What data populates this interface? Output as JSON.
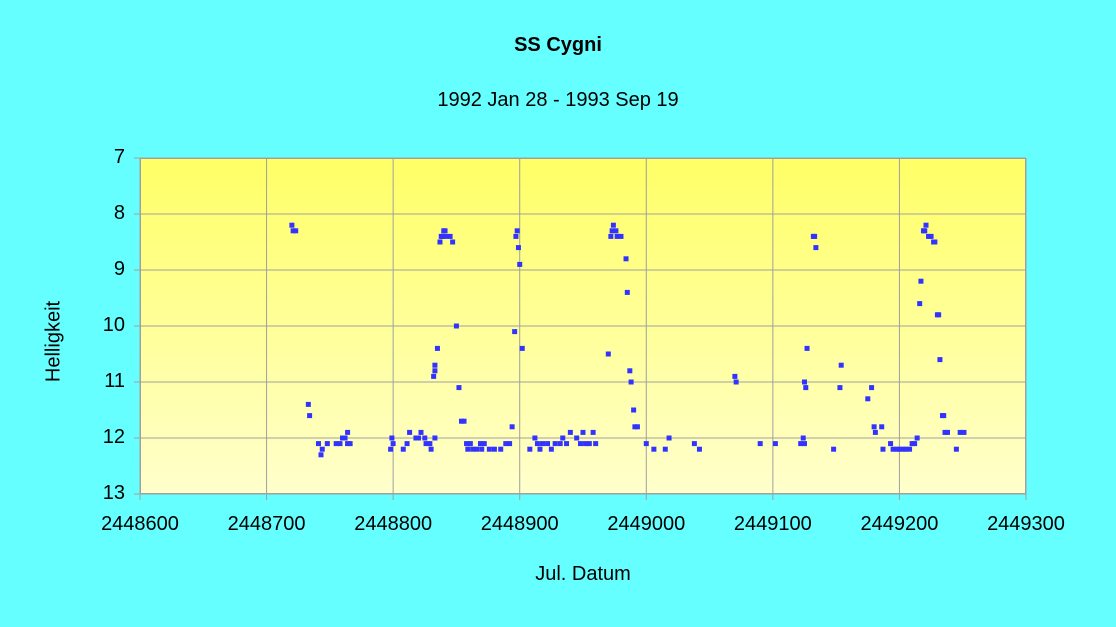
{
  "chart_data": {
    "type": "scatter",
    "title": "SS Cygni",
    "subtitle": "1992 Jan 28 - 1993 Sep 19",
    "xlabel": "Jul. Datum",
    "ylabel": "Helligkeit",
    "xlim": [
      2448600,
      2449300
    ],
    "ylim": [
      7,
      13
    ],
    "y_inverted": true,
    "xticks": [
      "2448600",
      "2448700",
      "2448800",
      "2448900",
      "2449000",
      "2449100",
      "2449200",
      "2449300"
    ],
    "yticks": [
      "7",
      "8",
      "9",
      "10",
      "11",
      "12",
      "13"
    ],
    "grid": true,
    "legend": null,
    "colors": {
      "background": "#66ffff",
      "plot_top": "#ffff66",
      "plot_bottom": "#ffffcc",
      "marker": "#3333ff",
      "grid": "#a0a0a0"
    },
    "series": [
      {
        "name": "SS Cyg",
        "points": [
          [
            2448720,
            8.2
          ],
          [
            2448721,
            8.3
          ],
          [
            2448723,
            8.3
          ],
          [
            2448733,
            11.4
          ],
          [
            2448734,
            11.6
          ],
          [
            2448741,
            12.1
          ],
          [
            2448743,
            12.3
          ],
          [
            2448744,
            12.2
          ],
          [
            2448748,
            12.1
          ],
          [
            2448755,
            12.1
          ],
          [
            2448758,
            12.1
          ],
          [
            2448760,
            12.0
          ],
          [
            2448762,
            12.0
          ],
          [
            2448764,
            11.9
          ],
          [
            2448764,
            12.1
          ],
          [
            2448766,
            12.1
          ],
          [
            2448798,
            12.2
          ],
          [
            2448799,
            12.0
          ],
          [
            2448800,
            12.1
          ],
          [
            2448808,
            12.2
          ],
          [
            2448811,
            12.1
          ],
          [
            2448813,
            11.9
          ],
          [
            2448818,
            12.0
          ],
          [
            2448820,
            12.0
          ],
          [
            2448822,
            11.9
          ],
          [
            2448825,
            12.0
          ],
          [
            2448826,
            12.1
          ],
          [
            2448829,
            12.1
          ],
          [
            2448830,
            12.2
          ],
          [
            2448833,
            12.0
          ],
          [
            2448832,
            10.9
          ],
          [
            2448833,
            10.8
          ],
          [
            2448833,
            10.7
          ],
          [
            2448835,
            10.4
          ],
          [
            2448837,
            8.5
          ],
          [
            2448838,
            8.4
          ],
          [
            2448839,
            8.4
          ],
          [
            2448840,
            8.3
          ],
          [
            2448841,
            8.3
          ],
          [
            2448842,
            8.4
          ],
          [
            2448845,
            8.4
          ],
          [
            2448847,
            8.5
          ],
          [
            2448850,
            10.0
          ],
          [
            2448852,
            11.1
          ],
          [
            2448854,
            11.7
          ],
          [
            2448856,
            11.7
          ],
          [
            2448858,
            12.1
          ],
          [
            2448859,
            12.2
          ],
          [
            2448861,
            12.1
          ],
          [
            2448863,
            12.2
          ],
          [
            2448866,
            12.2
          ],
          [
            2448869,
            12.1
          ],
          [
            2448870,
            12.2
          ],
          [
            2448872,
            12.1
          ],
          [
            2448876,
            12.2
          ],
          [
            2448880,
            12.2
          ],
          [
            2448885,
            12.2
          ],
          [
            2448889,
            12.1
          ],
          [
            2448892,
            12.1
          ],
          [
            2448894,
            11.8
          ],
          [
            2448896,
            10.1
          ],
          [
            2448897,
            8.4
          ],
          [
            2448898,
            8.3
          ],
          [
            2448899,
            8.6
          ],
          [
            2448900,
            8.9
          ],
          [
            2448902,
            10.4
          ],
          [
            2448908,
            12.2
          ],
          [
            2448912,
            12.0
          ],
          [
            2448914,
            12.1
          ],
          [
            2448916,
            12.2
          ],
          [
            2448918,
            12.1
          ],
          [
            2448922,
            12.1
          ],
          [
            2448925,
            12.2
          ],
          [
            2448928,
            12.1
          ],
          [
            2448932,
            12.1
          ],
          [
            2448934,
            12.0
          ],
          [
            2448937,
            12.1
          ],
          [
            2448940,
            11.9
          ],
          [
            2448945,
            12.0
          ],
          [
            2448948,
            12.1
          ],
          [
            2448950,
            11.9
          ],
          [
            2448952,
            12.1
          ],
          [
            2448955,
            12.1
          ],
          [
            2448958,
            11.9
          ],
          [
            2448960,
            12.1
          ],
          [
            2448970,
            10.5
          ],
          [
            2448972,
            8.4
          ],
          [
            2448973,
            8.3
          ],
          [
            2448974,
            8.2
          ],
          [
            2448976,
            8.3
          ],
          [
            2448977,
            8.4
          ],
          [
            2448980,
            8.4
          ],
          [
            2448984,
            8.8
          ],
          [
            2448985,
            9.4
          ],
          [
            2448987,
            10.8
          ],
          [
            2448988,
            11.0
          ],
          [
            2448990,
            11.5
          ],
          [
            2448991,
            11.8
          ],
          [
            2448993,
            11.8
          ],
          [
            2449000,
            12.1
          ],
          [
            2449006,
            12.2
          ],
          [
            2449015,
            12.2
          ],
          [
            2449018,
            12.0
          ],
          [
            2449038,
            12.1
          ],
          [
            2449042,
            12.2
          ],
          [
            2449070,
            10.9
          ],
          [
            2449071,
            11.0
          ],
          [
            2449090,
            12.1
          ],
          [
            2449102,
            12.1
          ],
          [
            2449122,
            12.1
          ],
          [
            2449124,
            12.0
          ],
          [
            2449125,
            12.1
          ],
          [
            2449125,
            11.0
          ],
          [
            2449126,
            11.1
          ],
          [
            2449127,
            10.4
          ],
          [
            2449132,
            8.4
          ],
          [
            2449133,
            8.4
          ],
          [
            2449134,
            8.6
          ],
          [
            2449148,
            12.2
          ],
          [
            2449153,
            11.1
          ],
          [
            2449154,
            10.7
          ],
          [
            2449175,
            11.3
          ],
          [
            2449178,
            11.1
          ],
          [
            2449180,
            11.8
          ],
          [
            2449181,
            11.9
          ],
          [
            2449186,
            11.8
          ],
          [
            2449187,
            12.2
          ],
          [
            2449193,
            12.1
          ],
          [
            2449195,
            12.2
          ],
          [
            2449198,
            12.2
          ],
          [
            2449200,
            12.2
          ],
          [
            2449203,
            12.2
          ],
          [
            2449205,
            12.2
          ],
          [
            2449208,
            12.2
          ],
          [
            2449210,
            12.1
          ],
          [
            2449212,
            12.1
          ],
          [
            2449214,
            12.0
          ],
          [
            2449216,
            9.6
          ],
          [
            2449217,
            9.2
          ],
          [
            2449219,
            8.3
          ],
          [
            2449220,
            8.3
          ],
          [
            2449221,
            8.2
          ],
          [
            2449223,
            8.4
          ],
          [
            2449225,
            8.4
          ],
          [
            2449227,
            8.5
          ],
          [
            2449228,
            8.5
          ],
          [
            2449230,
            9.8
          ],
          [
            2449231,
            9.8
          ],
          [
            2449232,
            10.6
          ],
          [
            2449234,
            11.6
          ],
          [
            2449235,
            11.6
          ],
          [
            2449236,
            11.9
          ],
          [
            2449238,
            11.9
          ],
          [
            2449245,
            12.2
          ],
          [
            2449248,
            11.9
          ],
          [
            2449251,
            11.9
          ]
        ]
      }
    ]
  }
}
